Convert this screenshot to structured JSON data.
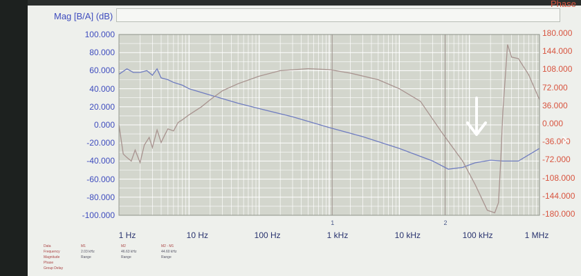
{
  "header": {
    "left_axis_title": "Mag [B/A] (dB)",
    "right_axis_title": "Phase"
  },
  "colors": {
    "magnitude": "#6f7cc0",
    "phase": "#a8938f",
    "grid": "#ffffff",
    "plot_bg": "#d3d6cd",
    "left_axis_text": "#3e4cbe",
    "right_axis_text": "#d8543f"
  },
  "chart_data": {
    "type": "line",
    "x_scale": "log",
    "xlim": [
      1,
      1000000
    ],
    "ylim_left": [
      -100,
      100
    ],
    "ylim_right": [
      -180,
      180
    ],
    "x_tick_labels": [
      "1 Hz",
      "10 Hz",
      "100 Hz",
      "1 kHz",
      "10 kHz",
      "100 kHz",
      "1 MHz"
    ],
    "left_tick_labels": [
      "100.000",
      "80.000",
      "60.000",
      "40.000",
      "20.000",
      "0.000",
      "-20.000",
      "-40.000",
      "-60.000",
      "-80.000",
      "-100.000"
    ],
    "right_tick_labels": [
      "180.000",
      "144.000",
      "108.000",
      "72.000",
      "36.000",
      "0.000",
      "-36.000",
      "-72.000",
      "-108.000",
      "-144.000",
      "-180.000"
    ],
    "markers": [
      {
        "label": "1",
        "x": 1100
      },
      {
        "label": "2",
        "x": 45000
      }
    ],
    "grid": true,
    "series": [
      {
        "axis": "left",
        "x": [
          1,
          1.3,
          1.6,
          2,
          2.5,
          3,
          3.5,
          4,
          5,
          6,
          8,
          10,
          20,
          50,
          100,
          300,
          1000,
          3000,
          10000,
          30000,
          50000,
          80000,
          120000,
          200000,
          300000,
          500000,
          1000000
        ],
        "y": [
          56,
          62,
          58,
          58,
          60,
          55,
          62,
          52,
          50,
          47,
          44,
          40,
          33,
          24,
          18,
          9,
          -3,
          -13,
          -26,
          -40,
          -49,
          -47,
          -42,
          -39,
          -40,
          -40,
          -26
        ]
      },
      {
        "axis": "right",
        "x": [
          1,
          1.15,
          1.3,
          1.5,
          1.7,
          2,
          2.3,
          2.7,
          3,
          3.5,
          4,
          4.5,
          5,
          6,
          7,
          8,
          10,
          15,
          20,
          30,
          50,
          100,
          200,
          500,
          1000,
          2000,
          5000,
          10000,
          20000,
          40000,
          80000,
          120000,
          180000,
          230000,
          260000,
          280000,
          300000,
          350000,
          400000,
          500000,
          700000,
          1000000
        ],
        "y": [
          0,
          -58,
          -65,
          -72,
          -50,
          -75,
          -40,
          -25,
          -45,
          -10,
          -35,
          -20,
          -8,
          -12,
          5,
          10,
          20,
          36,
          50,
          68,
          82,
          97,
          108,
          112,
          110,
          103,
          90,
          72,
          47,
          -14,
          -72,
          -118,
          -170,
          -175,
          -155,
          -70,
          26,
          160,
          135,
          132,
          100,
          50
        ]
      }
    ]
  },
  "footer": {
    "header_cells": [
      "Data",
      "M1",
      "M2",
      "M2 - M1"
    ],
    "row_labels": [
      "Frequency",
      "Magnitude",
      "Phase",
      "Group Delay"
    ],
    "values": [
      "2.03 kHz",
      "46.63 kHz",
      "44.60 kHz"
    ],
    "range_text": "Range"
  }
}
